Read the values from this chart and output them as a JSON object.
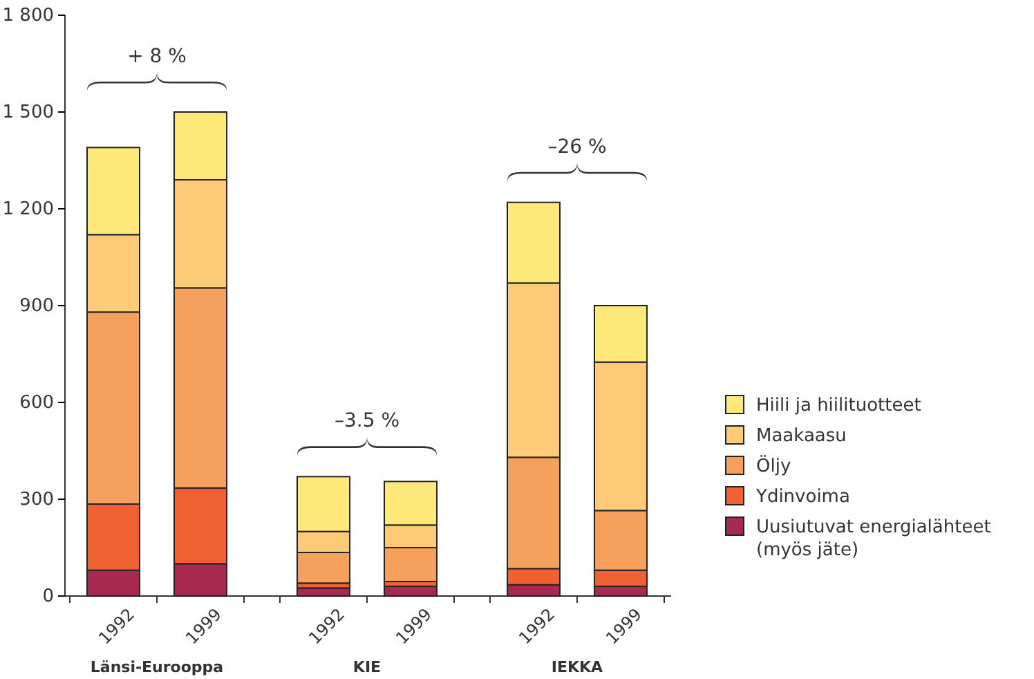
{
  "chart_data": {
    "type": "bar",
    "stacked": true,
    "categories": [
      "1992",
      "1999",
      "1992",
      "1999",
      "1992",
      "1999"
    ],
    "series": [
      {
        "name": "Uusiutuvat energialähteet (myös jäte)",
        "color": "#a8294f",
        "values": [
          80,
          100,
          25,
          30,
          35,
          30
        ]
      },
      {
        "name": "Ydinvoima",
        "color": "#ef6131",
        "values": [
          205,
          235,
          15,
          15,
          50,
          50
        ]
      },
      {
        "name": "Öljy",
        "color": "#f5a05c",
        "values": [
          595,
          620,
          95,
          105,
          345,
          185
        ]
      },
      {
        "name": "Maakaasu",
        "color": "#fdcb78",
        "values": [
          240,
          335,
          65,
          70,
          540,
          460
        ]
      },
      {
        "name": "Hiili ja hiilituotteet",
        "color": "#fee87a",
        "values": [
          270,
          210,
          170,
          135,
          250,
          175
        ]
      }
    ],
    "ylim": [
      0,
      1800
    ],
    "yticks": [
      0,
      {
        "value": 300,
        "label": "300"
      },
      {
        "value": 600,
        "label": "600"
      },
      {
        "value": 900,
        "label": "900"
      },
      {
        "value": 1200,
        "label": "1 200"
      },
      {
        "value": 1500,
        "label": "1 500"
      },
      {
        "value": 1800,
        "label": "1 800"
      }
    ],
    "legend": "right",
    "annotations": [
      "+ 8 %",
      "–3.5 %",
      "–26 %",
      "Länsi-Eurooppa",
      "KIE",
      "IEKKA"
    ]
  }
}
